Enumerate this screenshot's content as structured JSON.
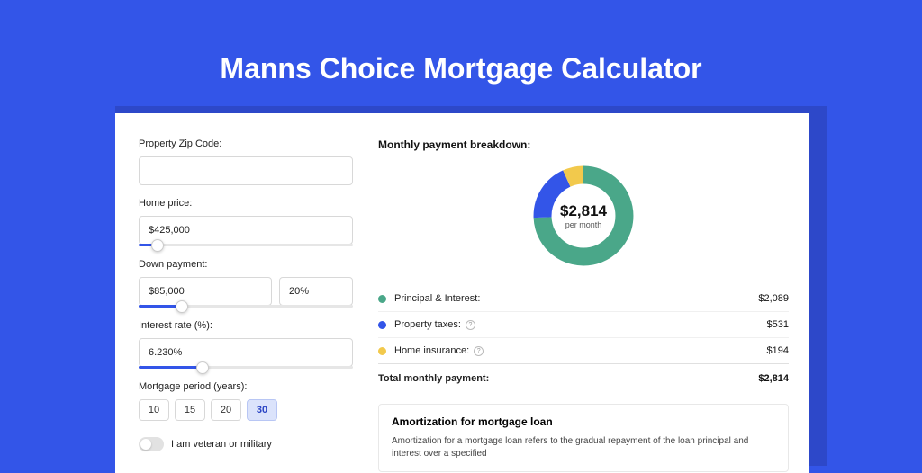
{
  "title": "Manns Choice Mortgage Calculator",
  "colors": {
    "page_bg": "#3355e8",
    "shadow_bg": "#2d48c9",
    "card_bg": "#ffffff",
    "accent": "#3355e8",
    "principal": "#4aa789",
    "taxes": "#3355e8",
    "insurance": "#f2c94c",
    "border": "#d8d8d8"
  },
  "form": {
    "zip": {
      "label": "Property Zip Code:",
      "value": ""
    },
    "home_price": {
      "label": "Home price:",
      "value": "$425,000",
      "slider_pct": 9
    },
    "down_payment": {
      "label": "Down payment:",
      "amount": "$85,000",
      "percent": "20%",
      "slider_pct": 20
    },
    "interest_rate": {
      "label": "Interest rate (%):",
      "value": "6.230%",
      "slider_pct": 30
    },
    "period": {
      "label": "Mortgage period (years):",
      "options": [
        "10",
        "15",
        "20",
        "30"
      ],
      "selected": "30"
    },
    "veteran": {
      "label": "I am veteran or military",
      "checked": false
    }
  },
  "breakdown": {
    "heading": "Monthly payment breakdown:",
    "donut": {
      "amount": "$2,814",
      "sub": "per month",
      "segments": [
        {
          "key": "principal",
          "color": "#4aa789",
          "value": 2089
        },
        {
          "key": "taxes",
          "color": "#3355e8",
          "value": 531
        },
        {
          "key": "insurance",
          "color": "#f2c94c",
          "value": 194
        }
      ],
      "total": 2814
    },
    "legend": [
      {
        "color": "#4aa789",
        "label": "Principal & Interest:",
        "value": "$2,089",
        "info": false
      },
      {
        "color": "#3355e8",
        "label": "Property taxes:",
        "value": "$531",
        "info": true
      },
      {
        "color": "#f2c94c",
        "label": "Home insurance:",
        "value": "$194",
        "info": true
      }
    ],
    "total": {
      "label": "Total monthly payment:",
      "value": "$2,814"
    }
  },
  "amortization": {
    "heading": "Amortization for mortgage loan",
    "text": "Amortization for a mortgage loan refers to the gradual repayment of the loan principal and interest over a specified"
  }
}
